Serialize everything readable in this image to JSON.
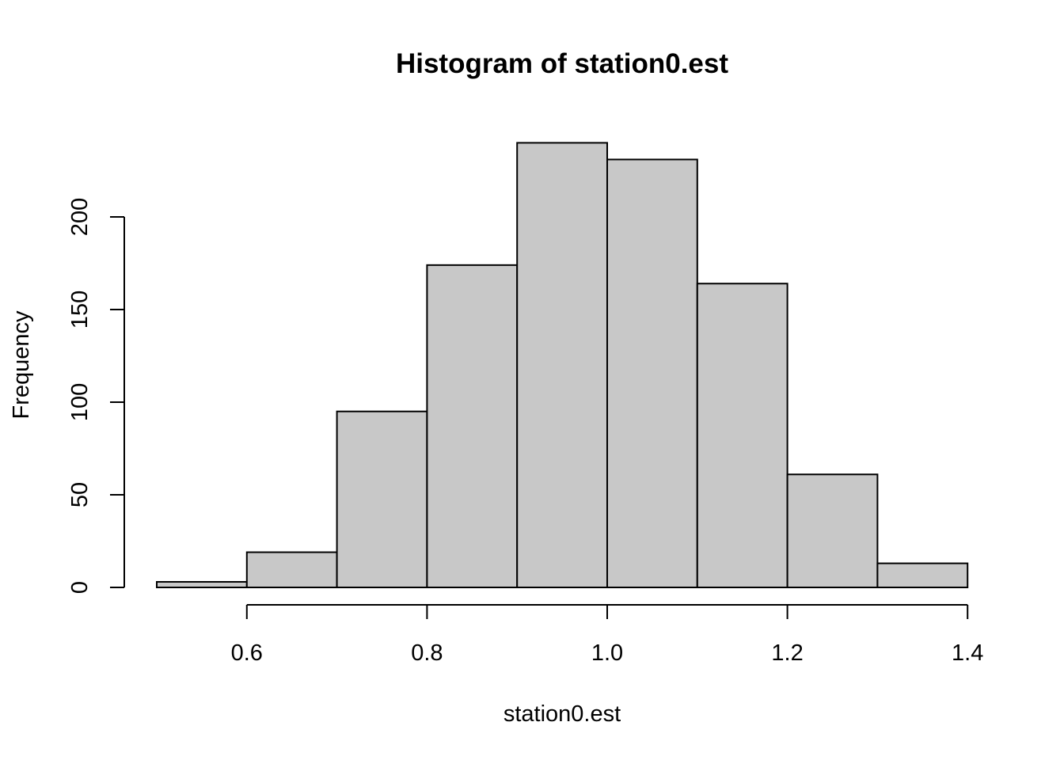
{
  "chart_data": {
    "type": "bar",
    "title": "Histogram of station0.est",
    "xlabel": "station0.est",
    "ylabel": "Frequency",
    "bins": [
      {
        "x0": 0.5,
        "x1": 0.6,
        "count": 3
      },
      {
        "x0": 0.6,
        "x1": 0.7,
        "count": 19
      },
      {
        "x0": 0.7,
        "x1": 0.8,
        "count": 95
      },
      {
        "x0": 0.8,
        "x1": 0.9,
        "count": 174
      },
      {
        "x0": 0.9,
        "x1": 1.0,
        "count": 240
      },
      {
        "x0": 1.0,
        "x1": 1.1,
        "count": 231
      },
      {
        "x0": 1.1,
        "x1": 1.2,
        "count": 164
      },
      {
        "x0": 1.2,
        "x1": 1.3,
        "count": 61
      },
      {
        "x0": 1.3,
        "x1": 1.4,
        "count": 13
      }
    ],
    "xticks": [
      {
        "value": 0.6,
        "label": "0.6"
      },
      {
        "value": 0.8,
        "label": "0.8"
      },
      {
        "value": 1.0,
        "label": "1.0"
      },
      {
        "value": 1.2,
        "label": "1.2"
      },
      {
        "value": 1.4,
        "label": "1.4"
      }
    ],
    "yticks": [
      {
        "value": 0,
        "label": "0"
      },
      {
        "value": 50,
        "label": "50"
      },
      {
        "value": 100,
        "label": "100"
      },
      {
        "value": 150,
        "label": "150"
      },
      {
        "value": 200,
        "label": "200"
      }
    ],
    "xlim": [
      0.5,
      1.4
    ],
    "ylim": [
      0,
      240
    ],
    "bar_color": "#c8c8c8",
    "edge_color": "#000000",
    "grid": false
  }
}
